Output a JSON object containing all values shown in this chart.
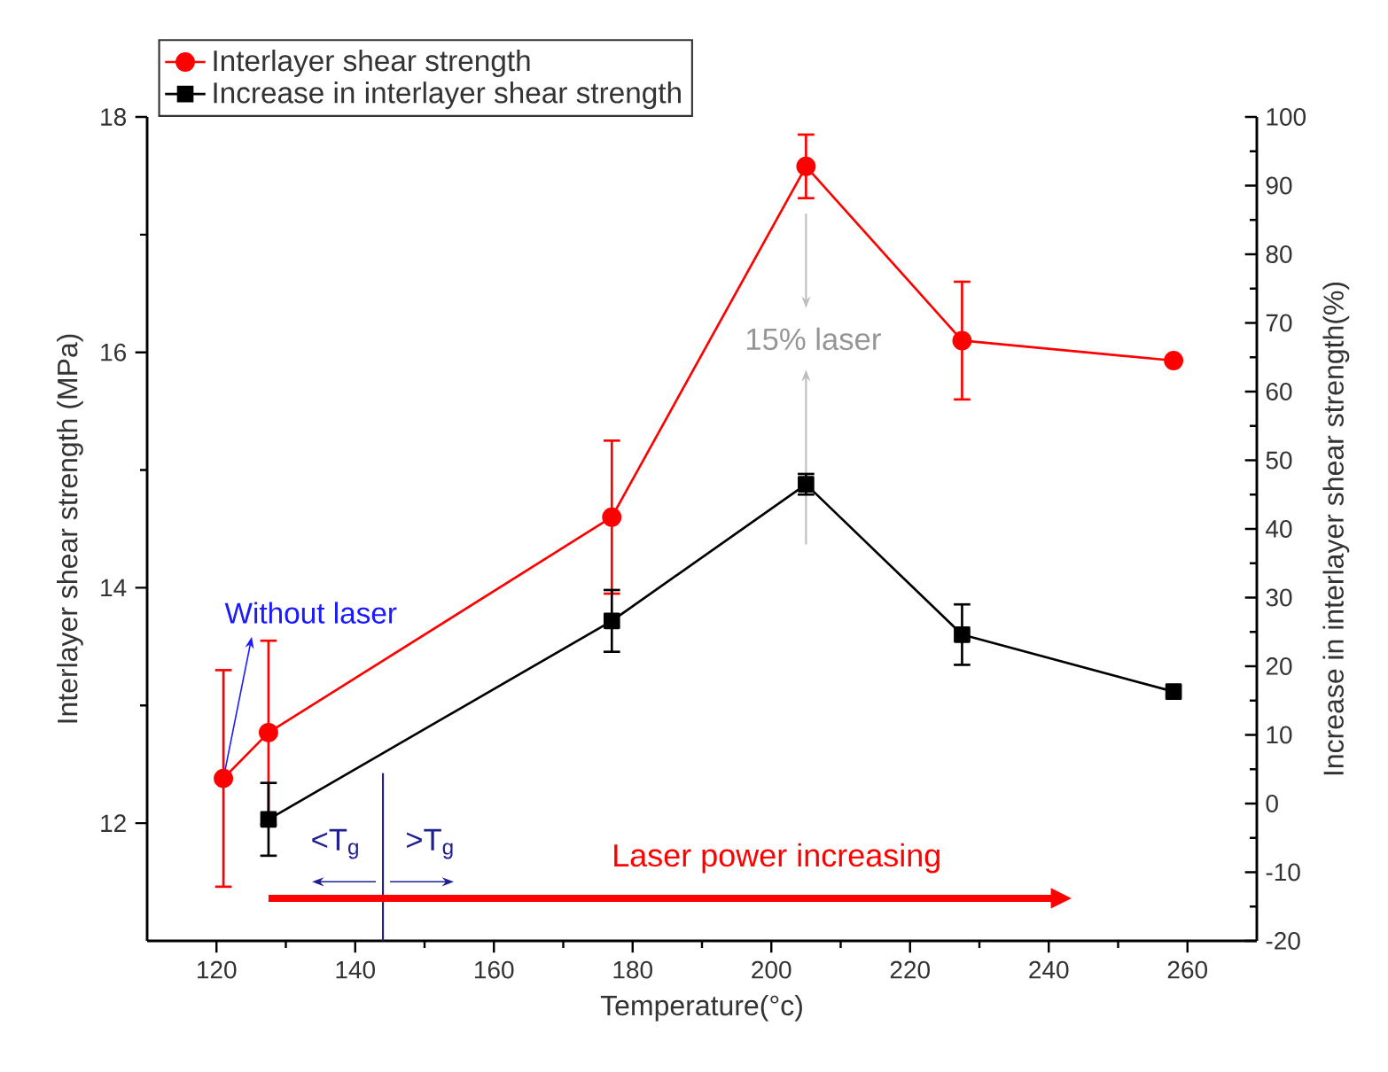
{
  "chart_data": {
    "type": "line",
    "xlabel": "Temperature(°c)",
    "ylabel": "Interlayer shear strength (MPa)",
    "y2label": "Increase in interlayer shear strength(%)",
    "x": [
      121,
      127.5,
      177,
      205,
      227.5,
      258
    ],
    "series": [
      {
        "name": "Interlayer shear strength",
        "color": "#ff0000",
        "marker": "circle",
        "values": [
          12.38,
          12.77,
          14.6,
          17.58,
          16.1,
          15.93
        ],
        "errors": [
          0.92,
          0.78,
          0.65,
          0.27,
          0.5,
          null
        ]
      },
      {
        "name": "Increase in interlayer shear strength",
        "color": "#000000",
        "marker": "square",
        "axis": "y2",
        "x": [
          127.5,
          177,
          205,
          227.5,
          258
        ],
        "values": [
          -2.3,
          26.6,
          46.5,
          24.6,
          16.3
        ],
        "errors": [
          5.3,
          4.5,
          1.5,
          4.4,
          null
        ]
      }
    ],
    "xlim": [
      110,
      270
    ],
    "xticks": [
      120,
      140,
      160,
      180,
      200,
      220,
      240,
      260
    ],
    "ylim": [
      11,
      18
    ],
    "yticks": [
      12,
      14,
      16,
      18
    ],
    "y2lim": [
      -20,
      100
    ],
    "y2ticks": [
      -20,
      -10,
      0,
      10,
      20,
      30,
      40,
      50,
      60,
      70,
      80,
      90,
      100
    ],
    "ref_lines": [
      {
        "axis": "x",
        "value": 144,
        "color": "#1f1f8f"
      }
    ],
    "annotations": [
      {
        "text": "Without laser",
        "x": 121,
        "y": 12.38
      },
      "15% laser",
      "<T$_{g}$",
      ">T$_{g}$",
      "Laser power increasing"
    ],
    "legend": "top left",
    "grid": false,
    "line_style": "solid"
  }
}
